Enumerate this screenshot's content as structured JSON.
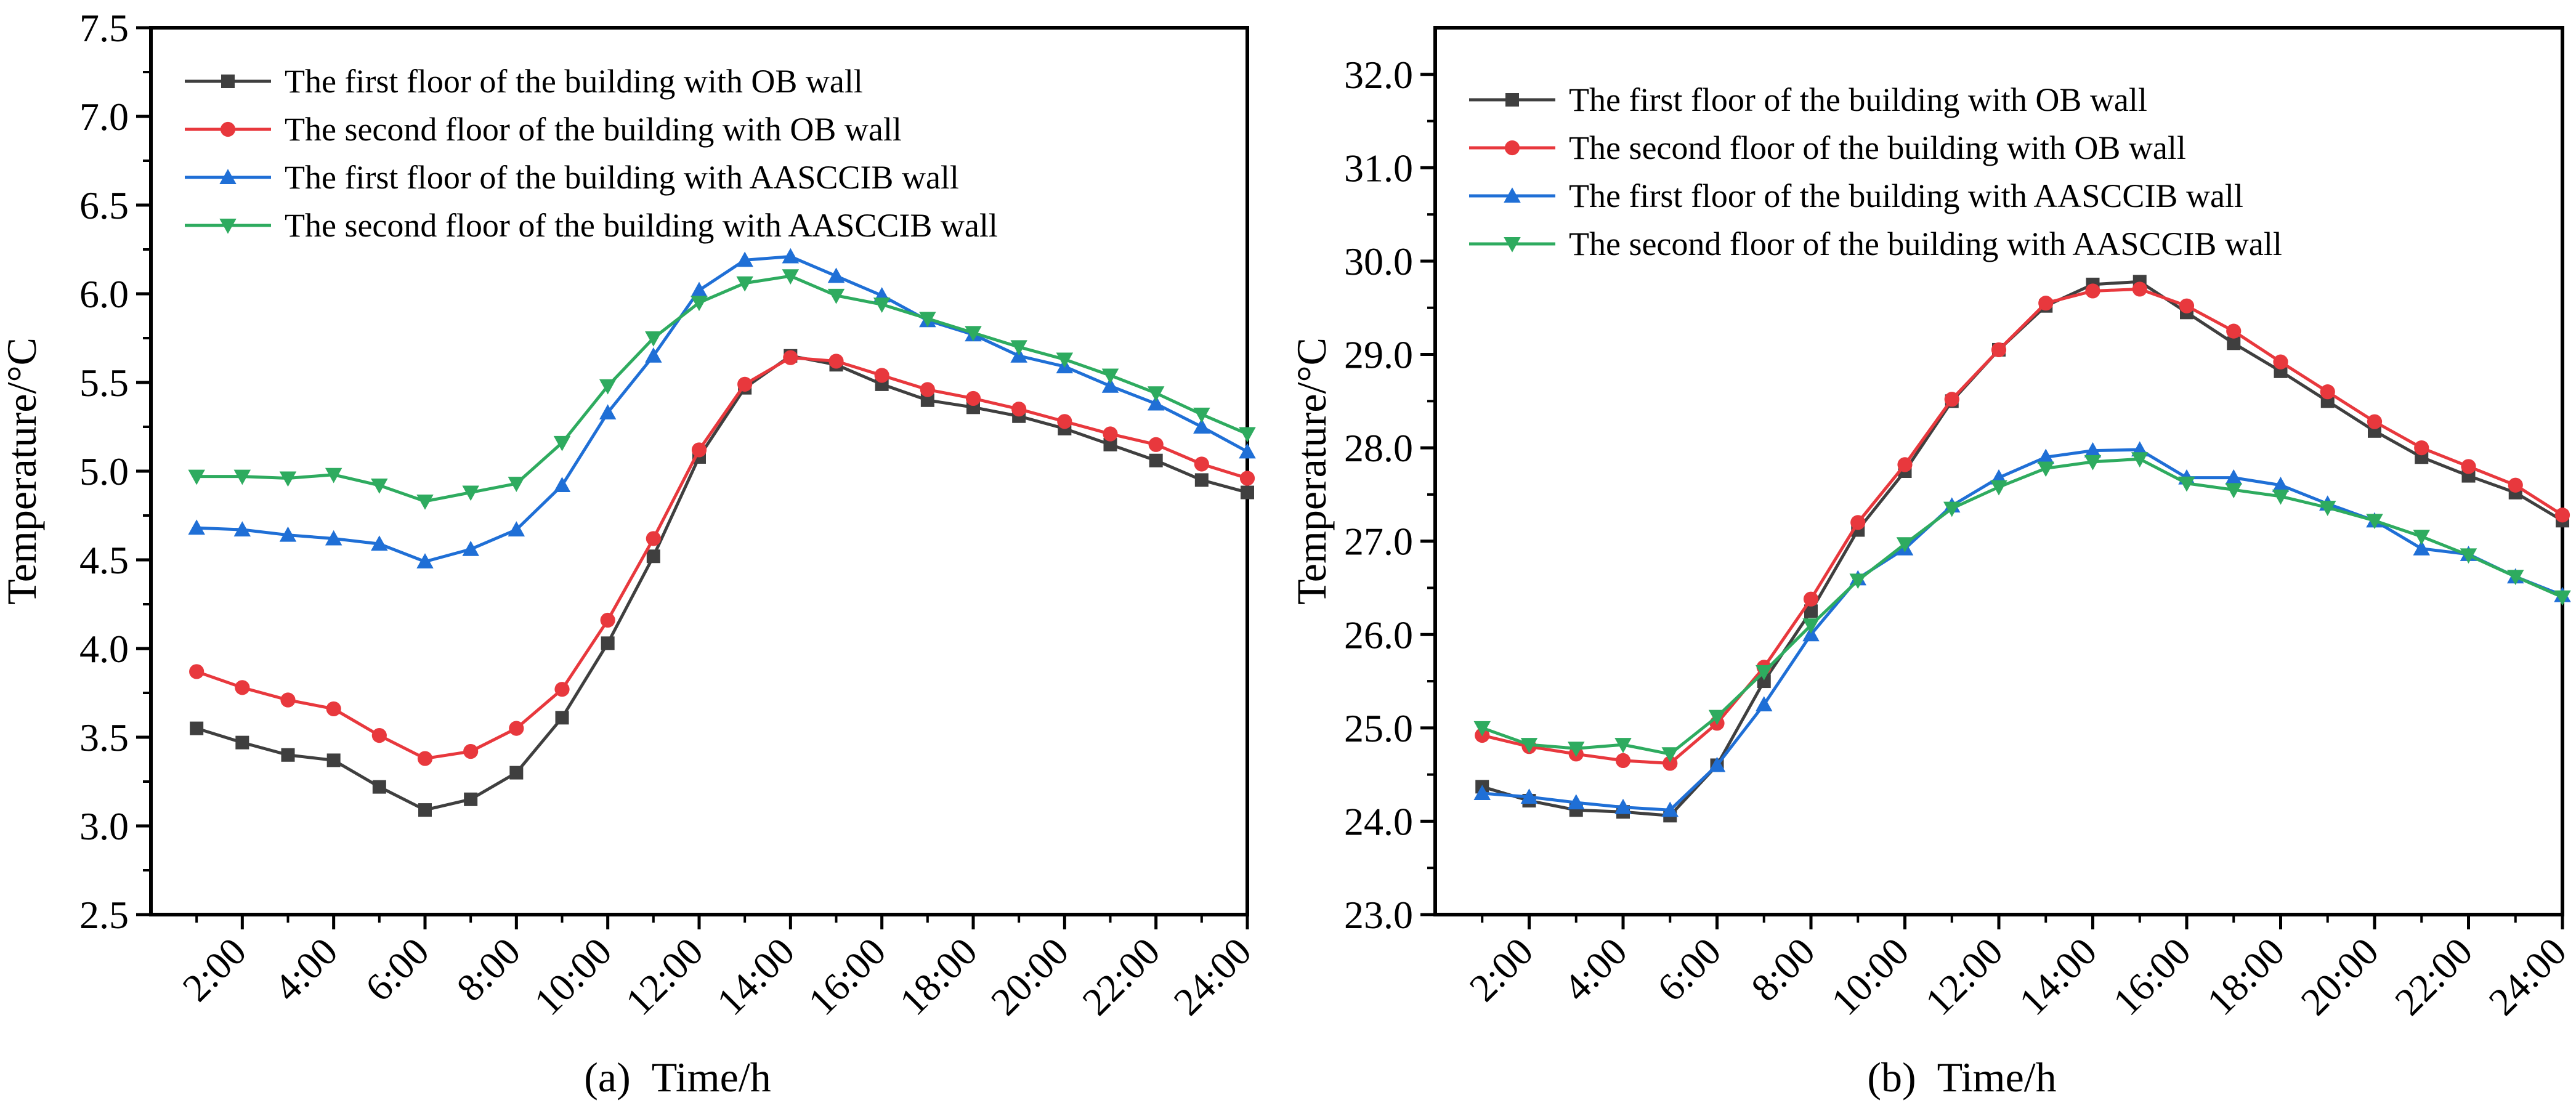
{
  "chart_data": [
    {
      "type": "line",
      "panel_label": "(a)",
      "xlabel": "Time/h",
      "ylabel": "Temperature/°C",
      "ylim": [
        2.5,
        7.5
      ],
      "yticks": [
        "2.5",
        "3.0",
        "3.5",
        "4.0",
        "4.5",
        "5.0",
        "5.5",
        "6.0",
        "6.5",
        "7.0",
        "7.5"
      ],
      "xlim": [
        0,
        24
      ],
      "x": [
        1,
        2,
        3,
        4,
        5,
        6,
        7,
        8,
        9,
        10,
        11,
        12,
        13,
        14,
        15,
        16,
        17,
        18,
        19,
        20,
        21,
        22,
        23,
        24
      ],
      "xticks": [
        {
          "x": 2,
          "label": "2:00"
        },
        {
          "x": 4,
          "label": "4:00"
        },
        {
          "x": 6,
          "label": "6:00"
        },
        {
          "x": 8,
          "label": "8:00"
        },
        {
          "x": 10,
          "label": "10:00"
        },
        {
          "x": 12,
          "label": "12:00"
        },
        {
          "x": 14,
          "label": "14:00"
        },
        {
          "x": 16,
          "label": "16:00"
        },
        {
          "x": 18,
          "label": "18:00"
        },
        {
          "x": 20,
          "label": "20:00"
        },
        {
          "x": 22,
          "label": "22:00"
        },
        {
          "x": 24,
          "label": "24:00"
        }
      ],
      "legend_position": "top-left",
      "series": [
        {
          "name": "The first floor of the building with OB wall",
          "color": "#3f3f3f",
          "marker": "square",
          "values": [
            3.55,
            3.47,
            3.4,
            3.37,
            3.22,
            3.09,
            3.15,
            3.3,
            3.61,
            4.03,
            4.52,
            5.08,
            5.47,
            5.65,
            5.6,
            5.49,
            5.4,
            5.36,
            5.31,
            5.24,
            5.15,
            5.06,
            4.95,
            4.88
          ]
        },
        {
          "name": "The second floor of the building with OB wall",
          "color": "#e8383d",
          "marker": "circle",
          "values": [
            3.87,
            3.78,
            3.71,
            3.66,
            3.51,
            3.38,
            3.42,
            3.55,
            3.77,
            4.16,
            4.62,
            5.12,
            5.49,
            5.64,
            5.62,
            5.54,
            5.46,
            5.41,
            5.35,
            5.28,
            5.21,
            5.15,
            5.04,
            4.96
          ]
        },
        {
          "name": "The first floor of the building with AASCCIB wall",
          "color": "#1f6fd6",
          "marker": "triangle-up",
          "values": [
            4.68,
            4.67,
            4.64,
            4.62,
            4.59,
            4.49,
            4.56,
            4.67,
            4.92,
            5.33,
            5.65,
            6.02,
            6.19,
            6.21,
            6.1,
            5.99,
            5.85,
            5.77,
            5.65,
            5.59,
            5.48,
            5.38,
            5.25,
            5.11
          ]
        },
        {
          "name": "The second floor of the building with AASCCIB wall",
          "color": "#2eab5f",
          "marker": "triangle-down",
          "values": [
            4.97,
            4.97,
            4.96,
            4.98,
            4.92,
            4.83,
            4.88,
            4.93,
            5.16,
            5.48,
            5.75,
            5.95,
            6.06,
            6.1,
            5.99,
            5.94,
            5.86,
            5.78,
            5.7,
            5.63,
            5.54,
            5.44,
            5.32,
            5.21
          ]
        }
      ]
    },
    {
      "type": "line",
      "panel_label": "(b)",
      "xlabel": "Time/h",
      "ylabel": "Temperature/°C",
      "ylim": [
        23.0,
        32.5
      ],
      "yticks": [
        "23.0",
        "24.0",
        "25.0",
        "26.0",
        "27.0",
        "28.0",
        "29.0",
        "30.0",
        "31.0",
        "32.0"
      ],
      "xlim": [
        0,
        24
      ],
      "x": [
        1,
        2,
        3,
        4,
        5,
        6,
        7,
        8,
        9,
        10,
        11,
        12,
        13,
        14,
        15,
        16,
        17,
        18,
        19,
        20,
        21,
        22,
        23,
        24
      ],
      "xticks": [
        {
          "x": 2,
          "label": "2:00"
        },
        {
          "x": 4,
          "label": "4:00"
        },
        {
          "x": 6,
          "label": "6:00"
        },
        {
          "x": 8,
          "label": "8:00"
        },
        {
          "x": 10,
          "label": "10:00"
        },
        {
          "x": 12,
          "label": "12:00"
        },
        {
          "x": 14,
          "label": "14:00"
        },
        {
          "x": 16,
          "label": "16:00"
        },
        {
          "x": 18,
          "label": "18:00"
        },
        {
          "x": 20,
          "label": "20:00"
        },
        {
          "x": 22,
          "label": "22:00"
        },
        {
          "x": 24,
          "label": "24:00"
        }
      ],
      "legend_position": "top-left",
      "series": [
        {
          "name": "The first floor of the building with OB wall",
          "color": "#3f3f3f",
          "marker": "square",
          "values": [
            24.37,
            24.22,
            24.12,
            24.1,
            24.06,
            24.6,
            25.5,
            26.25,
            27.12,
            27.75,
            28.5,
            29.05,
            29.52,
            29.75,
            29.78,
            29.45,
            29.12,
            28.82,
            28.5,
            28.18,
            27.9,
            27.7,
            27.52,
            27.22
          ]
        },
        {
          "name": "The second floor of the building with OB wall",
          "color": "#e8383d",
          "marker": "circle",
          "values": [
            24.92,
            24.8,
            24.72,
            24.65,
            24.62,
            25.05,
            25.65,
            26.38,
            27.2,
            27.82,
            28.52,
            29.05,
            29.55,
            29.68,
            29.7,
            29.52,
            29.25,
            28.92,
            28.6,
            28.28,
            28.0,
            27.8,
            27.6,
            27.28
          ]
        },
        {
          "name": "The first floor of the building with AASCCIB wall",
          "color": "#1f6fd6",
          "marker": "triangle-up",
          "values": [
            24.3,
            24.26,
            24.2,
            24.15,
            24.12,
            24.6,
            25.25,
            26.0,
            26.6,
            26.92,
            27.38,
            27.68,
            27.9,
            27.97,
            27.98,
            27.68,
            27.68,
            27.6,
            27.4,
            27.22,
            26.92,
            26.86,
            26.62,
            26.42
          ]
        },
        {
          "name": "The second floor of the building with AASCCIB wall",
          "color": "#2eab5f",
          "marker": "triangle-down",
          "values": [
            25.0,
            24.82,
            24.78,
            24.82,
            24.72,
            25.12,
            25.6,
            26.1,
            26.58,
            26.97,
            27.35,
            27.58,
            27.78,
            27.85,
            27.88,
            27.62,
            27.55,
            27.48,
            27.36,
            27.22,
            27.05,
            26.85,
            26.62,
            26.4
          ]
        }
      ]
    }
  ]
}
